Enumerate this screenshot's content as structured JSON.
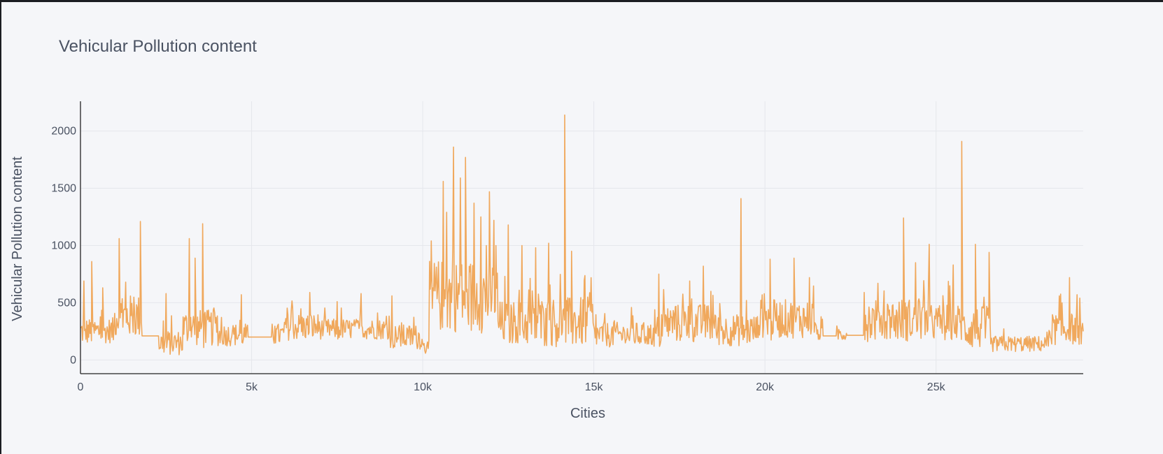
{
  "chart_data": {
    "type": "line",
    "title": "Vehicular Pollution content",
    "xlabel": "Cities",
    "ylabel": "Vehicular Pollution content",
    "xlim": [
      0,
      29300
    ],
    "ylim": [
      -120,
      2260
    ],
    "x_ticks": [
      0,
      5000,
      10000,
      15000,
      20000,
      25000
    ],
    "x_tick_labels": [
      "0",
      "5k",
      "10k",
      "15k",
      "20k",
      "25k"
    ],
    "y_ticks": [
      0,
      500,
      1000,
      1500,
      2000
    ],
    "y_tick_labels": [
      "0",
      "500",
      "1000",
      "1500",
      "2000"
    ],
    "grid": true,
    "legend": "none",
    "color": "#f0a04a",
    "series": [
      {
        "name": "Vehicular Pollution content",
        "n_points": 29300,
        "segments": [
          {
            "x": [
              0,
              1000
            ],
            "base": 250,
            "noise": 120,
            "min": 150,
            "max": 560
          },
          {
            "x": [
              1000,
              2000
            ],
            "base": 380,
            "noise": 190,
            "min": 220,
            "max": 720
          },
          {
            "x": [
              2000,
              3000
            ],
            "base": 150,
            "noise": 110,
            "min": 30,
            "max": 500
          },
          {
            "x": [
              3000,
              4000
            ],
            "base": 280,
            "noise": 160,
            "min": 70,
            "max": 700
          },
          {
            "x": [
              4000,
              6000
            ],
            "base": 220,
            "noise": 100,
            "min": 80,
            "max": 520
          },
          {
            "x": [
              6000,
              7000
            ],
            "base": 290,
            "noise": 120,
            "min": 60,
            "max": 560
          },
          {
            "x": [
              7000,
              9000
            ],
            "base": 270,
            "noise": 90,
            "min": 160,
            "max": 500
          },
          {
            "x": [
              9000,
              10000
            ],
            "base": 200,
            "noise": 110,
            "min": 60,
            "max": 500
          },
          {
            "x": [
              10000,
              10200
            ],
            "base": 110,
            "noise": 60,
            "min": 40,
            "max": 200
          },
          {
            "x": [
              10200,
              12200
            ],
            "base": 560,
            "noise": 320,
            "min": 130,
            "max": 1000
          },
          {
            "x": [
              12200,
              13300
            ],
            "base": 320,
            "noise": 200,
            "min": 150,
            "max": 800
          },
          {
            "x": [
              13300,
              15000
            ],
            "base": 330,
            "noise": 220,
            "min": 60,
            "max": 820
          },
          {
            "x": [
              15000,
              17000
            ],
            "base": 220,
            "noise": 110,
            "min": 50,
            "max": 480
          },
          {
            "x": [
              17000,
              18500
            ],
            "base": 320,
            "noise": 170,
            "min": 80,
            "max": 720
          },
          {
            "x": [
              18500,
              19800
            ],
            "base": 260,
            "noise": 140,
            "min": 60,
            "max": 700
          },
          {
            "x": [
              19800,
              21500
            ],
            "base": 360,
            "noise": 170,
            "min": 150,
            "max": 780
          },
          {
            "x": [
              21500,
              22800
            ],
            "base": 230,
            "noise": 70,
            "min": 180,
            "max": 420
          },
          {
            "x": [
              22800,
              24800
            ],
            "base": 350,
            "noise": 190,
            "min": 130,
            "max": 720
          },
          {
            "x": [
              24800,
              25800
            ],
            "base": 320,
            "noise": 170,
            "min": 120,
            "max": 700
          },
          {
            "x": [
              25800,
              26600
            ],
            "base": 280,
            "noise": 190,
            "min": 20,
            "max": 700
          },
          {
            "x": [
              26600,
              28300
            ],
            "base": 140,
            "noise": 70,
            "min": 20,
            "max": 320
          },
          {
            "x": [
              28300,
              29300
            ],
            "base": 270,
            "noise": 140,
            "min": 60,
            "max": 700
          }
        ],
        "flat_runs": [
          {
            "x": [
              1800,
              2300
            ],
            "value": 210
          },
          {
            "x": [
              4900,
              5600
            ],
            "value": 200
          },
          {
            "x": [
              21700,
              22100
            ],
            "value": 210
          },
          {
            "x": [
              22400,
              22900
            ],
            "value": 215
          }
        ],
        "peaks": [
          {
            "x": 100,
            "value": 690
          },
          {
            "x": 330,
            "value": 860
          },
          {
            "x": 650,
            "value": 630
          },
          {
            "x": 1130,
            "value": 1060
          },
          {
            "x": 1320,
            "value": 680
          },
          {
            "x": 1750,
            "value": 1210
          },
          {
            "x": 2500,
            "value": 580
          },
          {
            "x": 3180,
            "value": 1060
          },
          {
            "x": 3350,
            "value": 890
          },
          {
            "x": 3570,
            "value": 1190
          },
          {
            "x": 4700,
            "value": 570
          },
          {
            "x": 6700,
            "value": 590
          },
          {
            "x": 7500,
            "value": 510
          },
          {
            "x": 8200,
            "value": 580
          },
          {
            "x": 9100,
            "value": 560
          },
          {
            "x": 10250,
            "value": 1040
          },
          {
            "x": 10600,
            "value": 1560
          },
          {
            "x": 10700,
            "value": 1290
          },
          {
            "x": 10900,
            "value": 1860
          },
          {
            "x": 11100,
            "value": 1590
          },
          {
            "x": 11250,
            "value": 1770
          },
          {
            "x": 11500,
            "value": 1370
          },
          {
            "x": 11700,
            "value": 1250
          },
          {
            "x": 11950,
            "value": 1470
          },
          {
            "x": 12080,
            "value": 1220
          },
          {
            "x": 12500,
            "value": 1180
          },
          {
            "x": 12900,
            "value": 1000
          },
          {
            "x": 13300,
            "value": 980
          },
          {
            "x": 13680,
            "value": 1020
          },
          {
            "x": 14150,
            "value": 2140
          },
          {
            "x": 14350,
            "value": 950
          },
          {
            "x": 16900,
            "value": 750
          },
          {
            "x": 17800,
            "value": 690
          },
          {
            "x": 18200,
            "value": 820
          },
          {
            "x": 19300,
            "value": 1410
          },
          {
            "x": 20150,
            "value": 880
          },
          {
            "x": 20850,
            "value": 890
          },
          {
            "x": 21300,
            "value": 720
          },
          {
            "x": 23300,
            "value": 670
          },
          {
            "x": 24050,
            "value": 1240
          },
          {
            "x": 24400,
            "value": 850
          },
          {
            "x": 24800,
            "value": 1010
          },
          {
            "x": 25500,
            "value": 830
          },
          {
            "x": 25750,
            "value": 1910
          },
          {
            "x": 26150,
            "value": 1010
          },
          {
            "x": 26550,
            "value": 940
          },
          {
            "x": 28900,
            "value": 720
          },
          {
            "x": 29200,
            "value": 540
          }
        ]
      }
    ]
  }
}
